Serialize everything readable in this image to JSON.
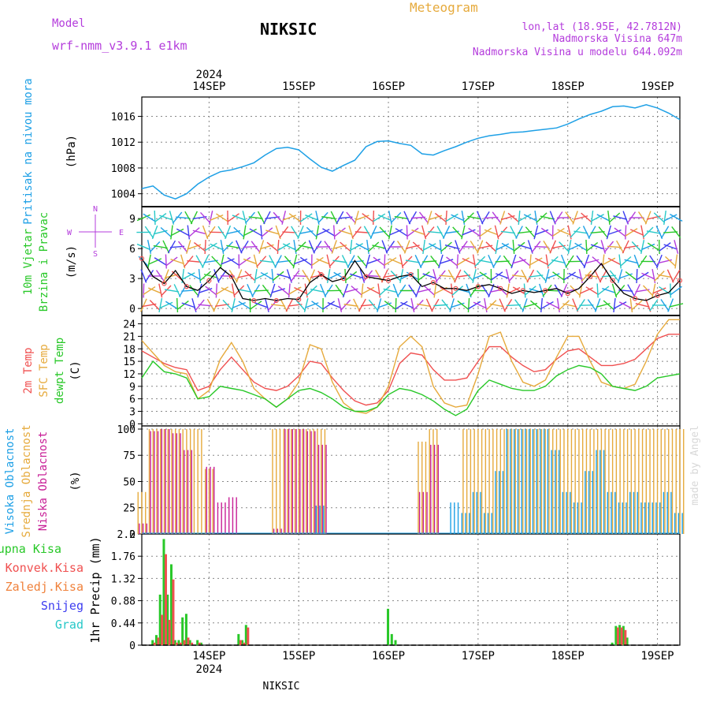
{
  "header": {
    "model_label": "Model",
    "model_name": "wrf-nmm_v3.9.1 e1km",
    "station": "NIKSIC",
    "product": "Meteogram",
    "lonlat": "lon,lat (18.95E, 42.7812N)",
    "elevation": "Nadmorska Visina 647m",
    "model_elevation": "Nadmorska Visina u modelu 644.092m",
    "year_top": "2024",
    "year_bottom": "2024",
    "footer": "NIKSIC",
    "watermark": "made by Angel"
  },
  "colors": {
    "pressure": "#1ea0e6",
    "temp2m": "#f05050",
    "sfctemp": "#e6aa3c",
    "dewpt": "#28c828",
    "high_cloud": "#1ea0e6",
    "mid_cloud": "#e6aa3c",
    "low_cloud": "#c81e96",
    "precip_total": "#28c828",
    "precip_conv": "#f05050",
    "precip_grid": "#f0823c",
    "snow": "#3c3cf0",
    "graupel": "#28c8c8",
    "wind_label": "#28c828",
    "compass": "#b43cdc",
    "grid": "#888888"
  },
  "chart_data": [
    {
      "id": "pressure",
      "type": "line",
      "ylabel_lines": [
        "Pritisak na nivou mora"
      ],
      "unit": "(hPa)",
      "x_ticks": [
        "14SEP",
        "15SEP",
        "16SEP",
        "17SEP",
        "18SEP",
        "19SEP"
      ],
      "x_range_hours": [
        -6,
        138
      ],
      "ylim": [
        1002,
        1019
      ],
      "y_ticks": [
        1004,
        1008,
        1012,
        1016
      ],
      "grid": true,
      "x_hours": [
        -6,
        -3,
        0,
        3,
        6,
        9,
        12,
        15,
        18,
        21,
        24,
        27,
        30,
        33,
        36,
        39,
        42,
        45,
        48,
        51,
        54,
        57,
        60,
        63,
        66,
        69,
        72,
        75,
        78,
        81,
        84,
        87,
        90,
        93,
        96,
        99,
        102,
        105,
        108,
        111,
        114,
        117,
        120,
        123,
        126,
        129,
        132,
        135,
        138
      ],
      "series": [
        {
          "values": [
            1004.8,
            1005.2,
            1003.8,
            1003.2,
            1004.0,
            1005.5,
            1006.6,
            1007.4,
            1007.7,
            1008.2,
            1008.8,
            1010.0,
            1011.0,
            1011.2,
            1010.8,
            1009.4,
            1008.1,
            1007.5,
            1008.4,
            1009.2,
            1011.3,
            1012.1,
            1012.2,
            1011.8,
            1011.5,
            1010.2,
            1010.0,
            1010.7,
            1011.3,
            1012.0,
            1012.6,
            1013.0,
            1013.2,
            1013.5,
            1013.6,
            1013.8,
            1014.0,
            1014.2,
            1014.8,
            1015.6,
            1016.3,
            1016.8,
            1017.5,
            1017.6,
            1017.3,
            1017.8,
            1017.3,
            1016.5,
            1015.5
          ]
        }
      ]
    },
    {
      "id": "wind",
      "type": "line",
      "ylabel_lines": [
        "10m Vjetar",
        "Brzina i Pravac"
      ],
      "unit": "(m/s)",
      "compass": [
        "N",
        "E",
        "S",
        "W"
      ],
      "x_ticks": [
        "14SEP",
        "15SEP",
        "16SEP",
        "17SEP",
        "18SEP",
        "19SEP"
      ],
      "ylim": [
        -0.7,
        10.2
      ],
      "y_ticks": [
        0,
        3,
        6,
        9
      ],
      "grid": true,
      "x_hours": [
        -6,
        -3,
        0,
        3,
        6,
        9,
        12,
        15,
        18,
        21,
        24,
        27,
        30,
        33,
        36,
        39,
        42,
        45,
        48,
        51,
        54,
        57,
        60,
        63,
        66,
        69,
        72,
        75,
        78,
        81,
        84,
        87,
        90,
        93,
        96,
        99,
        102,
        105,
        108,
        111,
        114,
        117,
        120,
        123,
        126,
        129,
        132,
        135,
        138
      ],
      "series": [
        {
          "values": [
            5.0,
            3.2,
            2.5,
            3.8,
            2.2,
            1.8,
            2.8,
            4.1,
            3.2,
            1.0,
            0.8,
            1.0,
            0.8,
            1.0,
            0.9,
            2.6,
            3.4,
            2.7,
            3.0,
            4.8,
            3.2,
            3.0,
            2.8,
            3.2,
            3.4,
            2.2,
            2.6,
            2.0,
            2.0,
            1.8,
            2.2,
            2.4,
            2.0,
            1.5,
            1.8,
            1.6,
            1.8,
            2.0,
            1.5,
            2.0,
            3.2,
            4.5,
            2.8,
            1.5,
            1.0,
            0.8,
            1.3,
            1.6,
            2.8
          ]
        }
      ]
    },
    {
      "id": "temperature",
      "type": "line",
      "ylabel_lines": [
        "2m Temp",
        "SFC Temp",
        "dewpt Temp"
      ],
      "unit": "(C)",
      "x_ticks": [
        "14SEP",
        "15SEP",
        "16SEP",
        "17SEP",
        "18SEP",
        "19SEP"
      ],
      "ylim": [
        -0.5,
        26
      ],
      "y_ticks": [
        0,
        3,
        6,
        9,
        12,
        15,
        18,
        21,
        24
      ],
      "grid": true,
      "x_hours": [
        -6,
        -3,
        0,
        3,
        6,
        9,
        12,
        15,
        18,
        21,
        24,
        27,
        30,
        33,
        36,
        39,
        42,
        45,
        48,
        51,
        54,
        57,
        60,
        63,
        66,
        69,
        72,
        75,
        78,
        81,
        84,
        87,
        90,
        93,
        96,
        99,
        102,
        105,
        108,
        111,
        114,
        117,
        120,
        123,
        126,
        129,
        132,
        135,
        138
      ],
      "series": [
        {
          "name": "2m Temp",
          "values": [
            17.5,
            16.0,
            14.5,
            13.5,
            13.0,
            8.0,
            9.0,
            13.0,
            16.0,
            13.0,
            10.0,
            8.5,
            8.0,
            9.0,
            11.5,
            15.0,
            14.5,
            11.0,
            8.0,
            5.5,
            4.5,
            5.0,
            8.0,
            14.5,
            17.0,
            16.5,
            13.0,
            10.5,
            10.5,
            11.0,
            15.0,
            18.5,
            18.5,
            16.0,
            14.0,
            12.5,
            13.0,
            15.5,
            17.5,
            18.0,
            16.0,
            14.0,
            14.0,
            14.5,
            15.5,
            18.0,
            20.5,
            21.5,
            21.5
          ]
        },
        {
          "name": "SFC Temp",
          "values": [
            20.0,
            17.0,
            14.0,
            12.5,
            12.0,
            6.0,
            8.0,
            15.5,
            19.5,
            15.0,
            8.5,
            6.0,
            4.0,
            6.0,
            10.0,
            19.0,
            18.0,
            10.0,
            5.0,
            3.0,
            2.5,
            4.0,
            9.0,
            18.5,
            21.0,
            18.5,
            9.0,
            5.0,
            4.0,
            4.5,
            12.0,
            21.0,
            22.0,
            15.0,
            10.0,
            9.0,
            10.5,
            16.0,
            21.0,
            21.0,
            15.0,
            10.0,
            9.0,
            8.5,
            9.5,
            15.0,
            21.5,
            25.0,
            25.0
          ]
        },
        {
          "name": "dewpt Temp",
          "values": [
            11.0,
            15.0,
            12.5,
            12.0,
            11.0,
            6.0,
            6.5,
            9.0,
            8.5,
            8.0,
            7.0,
            6.0,
            4.0,
            6.0,
            8.0,
            8.5,
            7.5,
            6.0,
            4.0,
            3.0,
            3.0,
            4.0,
            7.0,
            8.5,
            8.0,
            7.0,
            5.5,
            3.5,
            2.0,
            3.5,
            8.0,
            10.5,
            9.5,
            8.5,
            8.0,
            8.0,
            9.0,
            11.5,
            13.0,
            14.0,
            13.5,
            12.0,
            9.0,
            8.5,
            8.0,
            9.0,
            11.0,
            11.5,
            12.0
          ]
        }
      ]
    },
    {
      "id": "clouds",
      "type": "bar",
      "ylabel_lines": [
        "Visoka Oblacnost",
        "Srednja Oblacnost",
        "Niska Oblacnost"
      ],
      "unit": "(%)",
      "x_ticks": [
        "14SEP",
        "15SEP",
        "16SEP",
        "17SEP",
        "18SEP",
        "19SEP"
      ],
      "ylim": [
        0,
        103
      ],
      "y_ticks": [
        0,
        25,
        50,
        75,
        100
      ],
      "grid": true,
      "x_hours": [
        -6,
        -3,
        0,
        3,
        6,
        9,
        12,
        15,
        18,
        21,
        24,
        27,
        30,
        33,
        36,
        39,
        42,
        45,
        48,
        51,
        54,
        57,
        60,
        63,
        66,
        69,
        72,
        75,
        78,
        81,
        84,
        87,
        90,
        93,
        96,
        99,
        102,
        105,
        108,
        111,
        114,
        117,
        120,
        123,
        126,
        129,
        132,
        135,
        138
      ],
      "series": [
        {
          "name": "Visoka Oblacnost",
          "values": [
            0,
            0,
            0,
            0,
            0,
            0,
            0,
            0,
            0,
            0,
            0,
            0,
            0,
            0,
            0,
            0,
            27,
            0,
            0,
            0,
            0,
            0,
            0,
            0,
            0,
            0,
            0,
            0,
            30,
            20,
            40,
            20,
            60,
            100,
            100,
            100,
            100,
            80,
            40,
            30,
            60,
            80,
            40,
            30,
            40,
            30,
            30,
            40,
            20
          ]
        },
        {
          "name": "Srednja Oblacnost",
          "values": [
            40,
            100,
            100,
            100,
            100,
            100,
            62,
            0,
            0,
            0,
            0,
            0,
            100,
            100,
            100,
            100,
            100,
            0,
            0,
            0,
            0,
            0,
            0,
            0,
            0,
            88,
            100,
            0,
            0,
            100,
            100,
            100,
            100,
            100,
            100,
            100,
            100,
            100,
            100,
            100,
            100,
            100,
            100,
            100,
            100,
            100,
            100,
            100,
            100
          ]
        },
        {
          "name": "Niska Oblacnost",
          "values": [
            10,
            98,
            100,
            96,
            80,
            0,
            64,
            30,
            35,
            0,
            0,
            0,
            5,
            100,
            100,
            98,
            85,
            0,
            0,
            0,
            0,
            0,
            0,
            0,
            0,
            40,
            85,
            0,
            0,
            0,
            0,
            0,
            0,
            0,
            0,
            0,
            0,
            0,
            0,
            0,
            0,
            0,
            0,
            0,
            0,
            0,
            0,
            0,
            0
          ]
        }
      ]
    },
    {
      "id": "precipitation",
      "type": "bar",
      "ylabel_lines": [
        "1hr Precip",
        "(mm)"
      ],
      "legend": [
        "Ukupna Kisa",
        "Konvek.Kisa",
        "Zaledj.Kisa",
        "Snijeg",
        "Grad"
      ],
      "x_ticks": [
        "14SEP",
        "15SEP",
        "16SEP",
        "17SEP",
        "18SEP",
        "19SEP"
      ],
      "ylim": [
        0,
        2.2
      ],
      "y_ticks": [
        "0",
        "0.44",
        "0.88",
        "1.32",
        "1.76",
        "2.2"
      ],
      "grid": true,
      "total_x_hours": [
        -3,
        -2,
        -1,
        0,
        1,
        2,
        3,
        4,
        5,
        6,
        7,
        9,
        10,
        20,
        21,
        22,
        60,
        61,
        62,
        120,
        121,
        122,
        123,
        124
      ],
      "series": [
        {
          "name": "Ukupna Kisa",
          "values": [
            0.1,
            0.2,
            1.0,
            2.1,
            1.0,
            1.6,
            0.1,
            0.1,
            0.55,
            0.62,
            0.1,
            0.1,
            0.05,
            0.22,
            0.1,
            0.4,
            0.72,
            0.22,
            0.1,
            0.05,
            0.38,
            0.4,
            0.38,
            0.15
          ]
        },
        {
          "name": "Konvek.Kisa",
          "values": [
            0.05,
            0.15,
            0.6,
            1.8,
            0.5,
            1.3,
            0.05,
            0.05,
            0.1,
            0.15,
            0.05,
            0.05,
            0.0,
            0.1,
            0.05,
            0.35,
            0.0,
            0.0,
            0.0,
            0.0,
            0.35,
            0.35,
            0.3,
            0.0
          ]
        }
      ]
    }
  ]
}
